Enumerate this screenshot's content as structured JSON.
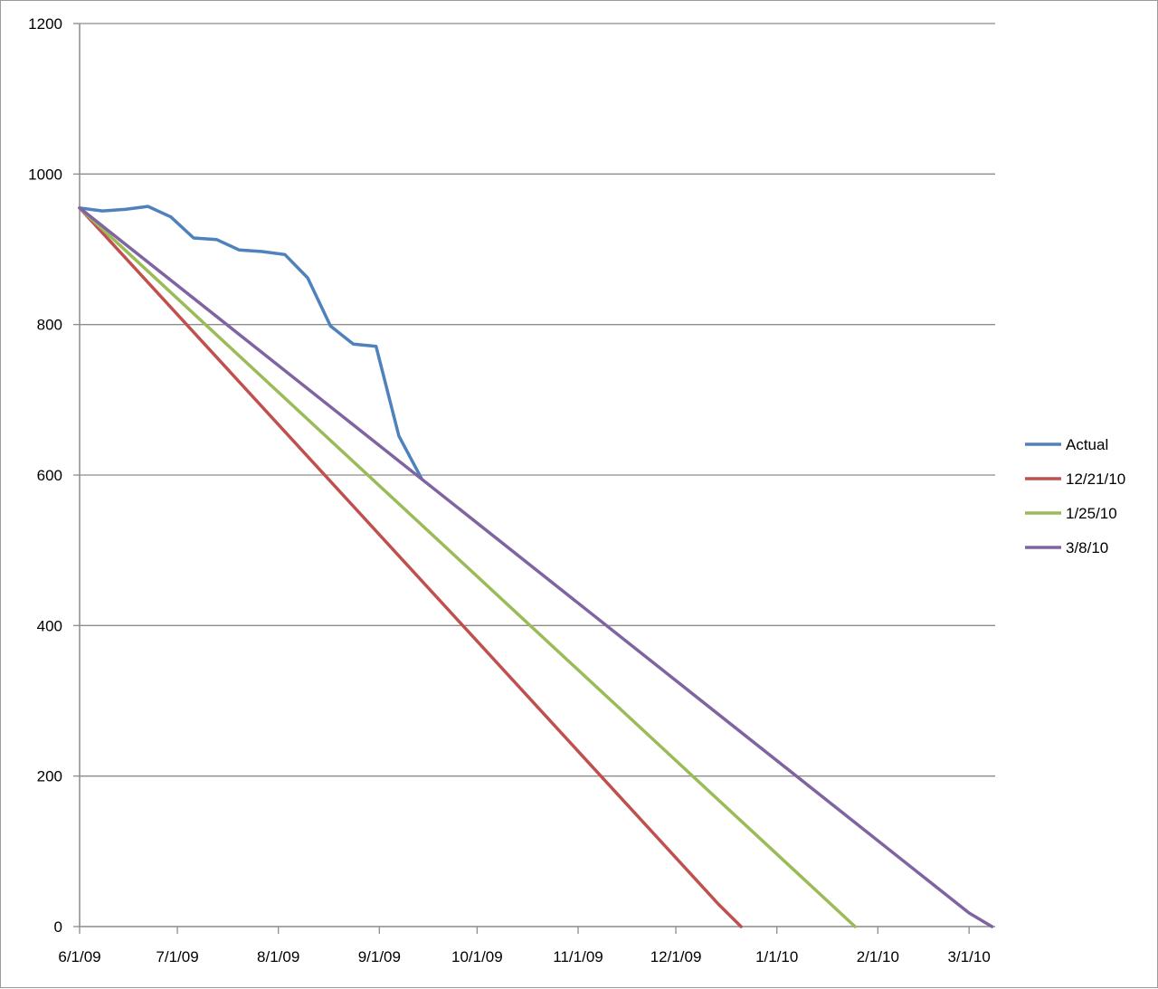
{
  "chart_data": {
    "type": "line",
    "title": "",
    "xlabel": "",
    "ylabel": "",
    "ylim": [
      0,
      1200
    ],
    "xlim": [
      "2009-06-01",
      "2010-03-09"
    ],
    "grid": {
      "horizontal": true,
      "vertical": false
    },
    "legend_position": "right",
    "y_ticks": [
      0,
      200,
      400,
      600,
      800,
      1000,
      1200
    ],
    "x_ticks": [
      {
        "date": "2009-06-01",
        "label": "6/1/09"
      },
      {
        "date": "2009-07-01",
        "label": "7/1/09"
      },
      {
        "date": "2009-08-01",
        "label": "8/1/09"
      },
      {
        "date": "2009-09-01",
        "label": "9/1/09"
      },
      {
        "date": "2009-10-01",
        "label": "10/1/09"
      },
      {
        "date": "2009-11-01",
        "label": "11/1/09"
      },
      {
        "date": "2009-12-01",
        "label": "12/1/09"
      },
      {
        "date": "2010-01-01",
        "label": "1/1/10"
      },
      {
        "date": "2010-02-01",
        "label": "2/1/10"
      },
      {
        "date": "2010-03-01",
        "label": "3/1/10"
      }
    ],
    "series": [
      {
        "name": "Actual",
        "color": "#4f81bd",
        "points": [
          [
            "2009-06-01",
            955
          ],
          [
            "2009-06-08",
            951
          ],
          [
            "2009-06-15",
            953
          ],
          [
            "2009-06-22",
            957
          ],
          [
            "2009-06-29",
            943
          ],
          [
            "2009-07-06",
            915
          ],
          [
            "2009-07-13",
            913
          ],
          [
            "2009-07-20",
            899
          ],
          [
            "2009-07-27",
            897
          ],
          [
            "2009-08-03",
            893
          ],
          [
            "2009-08-10",
            862
          ],
          [
            "2009-08-17",
            798
          ],
          [
            "2009-08-24",
            774
          ],
          [
            "2009-08-31",
            771
          ],
          [
            "2009-09-07",
            652
          ],
          [
            "2009-09-14",
            595
          ]
        ]
      },
      {
        "name": "12/21/10",
        "color": "#c0504d",
        "points": [
          [
            "2009-06-01",
            955
          ],
          [
            "2009-12-14",
            30
          ],
          [
            "2009-12-21",
            0
          ]
        ]
      },
      {
        "name": "1/25/10",
        "color": "#9bbb59",
        "points": [
          [
            "2009-06-01",
            955
          ],
          [
            "2010-01-25",
            0
          ]
        ]
      },
      {
        "name": "3/8/10",
        "color": "#8064a2",
        "points": [
          [
            "2009-06-01",
            955
          ],
          [
            "2010-03-01",
            18
          ],
          [
            "2010-03-08",
            0
          ]
        ]
      }
    ]
  }
}
